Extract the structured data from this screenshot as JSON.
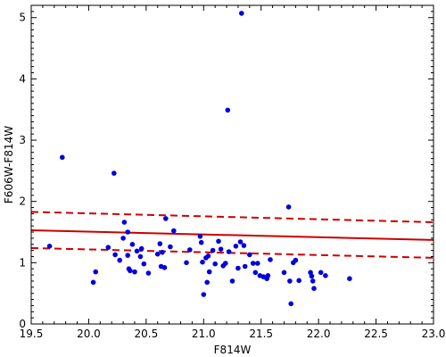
{
  "chart_data": {
    "type": "scatter",
    "xlabel": "F814W",
    "ylabel": "F606W-F814W",
    "xlim": [
      19.5,
      23.0
    ],
    "ylim": [
      0,
      5.2
    ],
    "x_ticks": [
      {
        "value": 19.5,
        "label": "19.5"
      },
      {
        "value": 20.0,
        "label": "20.0"
      },
      {
        "value": 20.5,
        "label": "20.5"
      },
      {
        "value": 21.0,
        "label": "21.0"
      },
      {
        "value": 21.5,
        "label": "21.5"
      },
      {
        "value": 22.0,
        "label": "22.0"
      },
      {
        "value": 22.5,
        "label": "22.5"
      },
      {
        "value": 23.0,
        "label": "23.0"
      }
    ],
    "y_ticks": [
      {
        "value": 0,
        "label": "0"
      },
      {
        "value": 1,
        "label": "1"
      },
      {
        "value": 2,
        "label": "2"
      },
      {
        "value": 3,
        "label": "3"
      },
      {
        "value": 4,
        "label": "4"
      },
      {
        "value": 5,
        "label": "5"
      }
    ],
    "grid": false,
    "colors": {
      "points": "#0000dd",
      "lines": "#cc0000",
      "axis": "#000000"
    },
    "points": [
      [
        19.66,
        1.27
      ],
      [
        19.77,
        2.72
      ],
      [
        20.04,
        0.68
      ],
      [
        20.06,
        0.85
      ],
      [
        20.17,
        1.25
      ],
      [
        20.22,
        2.46
      ],
      [
        20.23,
        1.13
      ],
      [
        20.27,
        1.04
      ],
      [
        20.3,
        1.4
      ],
      [
        20.31,
        1.66
      ],
      [
        20.34,
        1.5
      ],
      [
        20.34,
        1.12
      ],
      [
        20.35,
        0.9
      ],
      [
        20.36,
        0.87
      ],
      [
        20.38,
        1.3
      ],
      [
        20.4,
        0.85
      ],
      [
        20.42,
        1.19
      ],
      [
        20.45,
        1.1
      ],
      [
        20.46,
        1.23
      ],
      [
        20.48,
        0.98
      ],
      [
        20.52,
        0.83
      ],
      [
        20.6,
        1.14
      ],
      [
        20.62,
        1.31
      ],
      [
        20.63,
        0.94
      ],
      [
        20.64,
        1.17
      ],
      [
        20.66,
        0.92
      ],
      [
        20.67,
        1.72
      ],
      [
        20.71,
        1.26
      ],
      [
        20.74,
        1.52
      ],
      [
        20.85,
        1.0
      ],
      [
        20.88,
        1.21
      ],
      [
        20.97,
        1.43
      ],
      [
        20.98,
        1.33
      ],
      [
        20.99,
        1.01
      ],
      [
        21.0,
        0.48
      ],
      [
        21.02,
        1.08
      ],
      [
        21.03,
        0.68
      ],
      [
        21.04,
        1.11
      ],
      [
        21.05,
        0.85
      ],
      [
        21.08,
        1.2
      ],
      [
        21.1,
        0.98
      ],
      [
        21.13,
        1.35
      ],
      [
        21.15,
        1.22
      ],
      [
        21.17,
        0.95
      ],
      [
        21.19,
        0.99
      ],
      [
        21.21,
        3.49
      ],
      [
        21.22,
        1.18
      ],
      [
        21.25,
        0.7
      ],
      [
        21.28,
        1.27
      ],
      [
        21.3,
        0.91
      ],
      [
        21.32,
        1.34
      ],
      [
        21.33,
        5.07
      ],
      [
        21.35,
        1.28
      ],
      [
        21.36,
        0.94
      ],
      [
        21.4,
        1.13
      ],
      [
        21.43,
        0.99
      ],
      [
        21.45,
        0.84
      ],
      [
        21.47,
        0.99
      ],
      [
        21.49,
        0.79
      ],
      [
        21.52,
        0.77
      ],
      [
        21.55,
        0.74
      ],
      [
        21.56,
        0.79
      ],
      [
        21.58,
        1.05
      ],
      [
        21.7,
        0.84
      ],
      [
        21.74,
        1.91
      ],
      [
        21.75,
        0.7
      ],
      [
        21.76,
        0.33
      ],
      [
        21.78,
        1.0
      ],
      [
        21.8,
        1.04
      ],
      [
        21.83,
        0.71
      ],
      [
        21.93,
        0.84
      ],
      [
        21.94,
        0.78
      ],
      [
        21.95,
        0.7
      ],
      [
        21.96,
        0.58
      ],
      [
        22.02,
        0.84
      ],
      [
        22.06,
        0.79
      ],
      [
        22.27,
        0.74
      ]
    ],
    "lines": [
      {
        "style": "solid",
        "points": [
          [
            19.5,
            1.53
          ],
          [
            23.0,
            1.37
          ]
        ]
      },
      {
        "style": "dashed",
        "points": [
          [
            19.5,
            1.83
          ],
          [
            23.0,
            1.66
          ]
        ]
      },
      {
        "style": "dashed",
        "points": [
          [
            19.5,
            1.24
          ],
          [
            23.0,
            1.08
          ]
        ]
      }
    ]
  }
}
